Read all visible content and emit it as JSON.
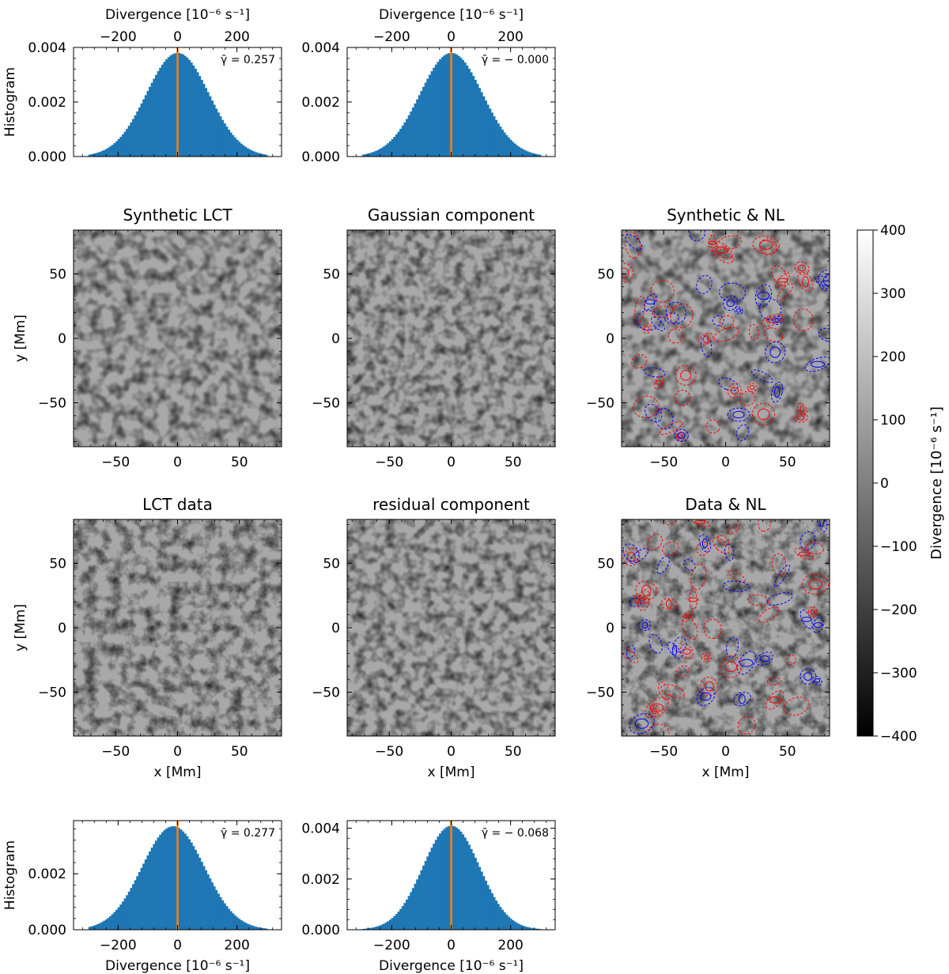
{
  "figure": {
    "histogram_ylabel": "Histogram",
    "divergence_label": "Divergence [10⁻⁶ s⁻¹]",
    "x_label": "x [Mm]",
    "y_label": "y [Mm]",
    "colorbar": {
      "label": "Divergence [10⁻⁶ s⁻¹]",
      "range": [
        -400,
        400
      ],
      "ticks": [
        -400,
        -300,
        -200,
        -100,
        0,
        100,
        200,
        300,
        400
      ],
      "colormap": "gray",
      "color_low": "#000000",
      "color_high": "#ffffff"
    },
    "colors": {
      "histogram_bar": "#1f77b4",
      "mean_line": "#ff7f0e",
      "contour_positive": "#ff0000",
      "contour_negative": "#0000ff"
    }
  },
  "chart_data": [
    {
      "id": "hist-synthetic",
      "type": "bar",
      "title": "",
      "xlabel": "Divergence [10⁻⁶ s⁻¹]",
      "xlabel_position": "top",
      "ylabel": "Histogram",
      "xlim": [
        -350,
        350
      ],
      "ylim": [
        0,
        0.004
      ],
      "xticks": [
        -200,
        0,
        200
      ],
      "yticks": [
        0,
        0.002,
        0.004
      ],
      "ytick_labels": [
        "0.000",
        "0.002",
        "0.004"
      ],
      "distribution": {
        "shape": "gaussian",
        "peak": 0.0038,
        "sigma": 105,
        "mean": 0
      },
      "mean_line_x": 0,
      "annotation": "γ̄ = 0.257"
    },
    {
      "id": "hist-gaussian",
      "type": "bar",
      "title": "",
      "xlabel": "Divergence [10⁻⁶ s⁻¹]",
      "xlabel_position": "top",
      "ylabel": "",
      "xlim": [
        -350,
        350
      ],
      "ylim": [
        0,
        0.004
      ],
      "xticks": [
        -200,
        0,
        200
      ],
      "yticks": [
        0,
        0.002,
        0.004
      ],
      "ytick_labels": [
        "0.000",
        "0.002",
        "0.004"
      ],
      "distribution": {
        "shape": "gaussian",
        "peak": 0.0038,
        "sigma": 105,
        "mean": 0
      },
      "mean_line_x": 0,
      "annotation": "γ̄ = − 0.000"
    },
    {
      "id": "map-synthetic-lct",
      "type": "heatmap",
      "title": "Synthetic LCT",
      "xlabel": "",
      "ylabel": "y [Mm]",
      "xlim": [
        -84,
        84
      ],
      "ylim": [
        -84,
        84
      ],
      "xticks": [
        -50,
        0,
        50
      ],
      "yticks": [
        -50,
        0,
        50
      ],
      "value_range": [
        -400,
        400
      ],
      "contours": false
    },
    {
      "id": "map-gaussian-component",
      "type": "heatmap",
      "title": "Gaussian component",
      "xlabel": "",
      "ylabel": "",
      "xlim": [
        -84,
        84
      ],
      "ylim": [
        -84,
        84
      ],
      "xticks": [
        -50,
        0,
        50
      ],
      "yticks": [
        -50,
        0,
        50
      ],
      "value_range": [
        -400,
        400
      ],
      "contours": false
    },
    {
      "id": "map-synthetic-nl",
      "type": "heatmap",
      "title": "Synthetic & NL",
      "xlabel": "",
      "ylabel": "",
      "xlim": [
        -84,
        84
      ],
      "ylim": [
        -84,
        84
      ],
      "xticks": [
        -50,
        0,
        50
      ],
      "yticks": [
        -50,
        0,
        50
      ],
      "value_range": [
        -400,
        400
      ],
      "contours": true
    },
    {
      "id": "map-lct-data",
      "type": "heatmap",
      "title": "LCT data",
      "xlabel": "x [Mm]",
      "ylabel": "y [Mm]",
      "xlim": [
        -84,
        84
      ],
      "ylim": [
        -84,
        84
      ],
      "xticks": [
        -50,
        0,
        50
      ],
      "yticks": [
        -50,
        0,
        50
      ],
      "value_range": [
        -400,
        400
      ],
      "contours": false
    },
    {
      "id": "map-residual-component",
      "type": "heatmap",
      "title": "residual component",
      "xlabel": "x [Mm]",
      "ylabel": "",
      "xlim": [
        -84,
        84
      ],
      "ylim": [
        -84,
        84
      ],
      "xticks": [
        -50,
        0,
        50
      ],
      "yticks": [
        -50,
        0,
        50
      ],
      "value_range": [
        -400,
        400
      ],
      "contours": false
    },
    {
      "id": "map-data-nl",
      "type": "heatmap",
      "title": "Data & NL",
      "xlabel": "x [Mm]",
      "ylabel": "",
      "xlim": [
        -84,
        84
      ],
      "ylim": [
        -84,
        84
      ],
      "xticks": [
        -50,
        0,
        50
      ],
      "yticks": [
        -50,
        0,
        50
      ],
      "value_range": [
        -400,
        400
      ],
      "contours": true
    },
    {
      "id": "hist-lct-data",
      "type": "bar",
      "title": "",
      "xlabel": "Divergence [10⁻⁶ s⁻¹]",
      "xlabel_position": "bottom",
      "ylabel": "Histogram",
      "xlim": [
        -350,
        350
      ],
      "ylim": [
        0,
        0.0039
      ],
      "xticks": [
        -200,
        0,
        200
      ],
      "yticks": [
        0,
        0.002
      ],
      "ytick_labels": [
        "0.000",
        "0.002"
      ],
      "distribution": {
        "shape": "gaussian",
        "peak": 0.0037,
        "sigma": 105,
        "mean": -15
      },
      "mean_line_x": 0,
      "annotation": "γ̄ = 0.277"
    },
    {
      "id": "hist-residual",
      "type": "bar",
      "title": "",
      "xlabel": "Divergence [10⁻⁶ s⁻¹]",
      "xlabel_position": "bottom",
      "ylabel": "",
      "xlim": [
        -350,
        350
      ],
      "ylim": [
        0,
        0.0043
      ],
      "xticks": [
        -200,
        0,
        200
      ],
      "yticks": [
        0,
        0.002,
        0.004
      ],
      "ytick_labels": [
        "0.000",
        "0.002",
        "0.004"
      ],
      "distribution": {
        "shape": "gaussian",
        "peak": 0.0041,
        "sigma": 95,
        "mean": 0
      },
      "mean_line_x": 0,
      "annotation": "γ̄ = − 0.068"
    }
  ]
}
